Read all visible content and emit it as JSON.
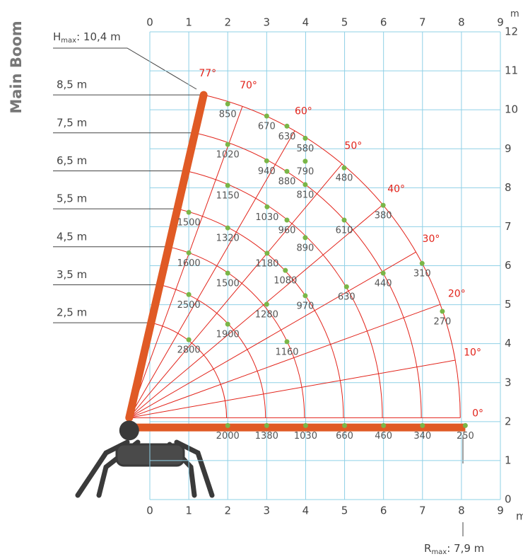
{
  "chart_data": {
    "type": "load-chart",
    "title": "Main Boom",
    "xlim": [
      0,
      9
    ],
    "ylim": [
      0,
      12
    ],
    "xticks": [
      0,
      1,
      2,
      3,
      4,
      5,
      6,
      7,
      8,
      9
    ],
    "yticks": [
      0,
      1,
      2,
      3,
      4,
      5,
      6,
      7,
      8,
      9,
      10,
      11,
      12
    ],
    "x_unit": "m",
    "y_unit": "m",
    "grid": true,
    "grid_color": "#8fd0e6",
    "arc_color": "#e2231a",
    "point_color": "#7ab648",
    "boom_color": "#e05a25",
    "arcs": [
      {
        "value": 2.5,
        "label": "2,5 m"
      },
      {
        "value": 3.5,
        "label": "3,5 m"
      },
      {
        "value": 4.5,
        "label": "4,5 m"
      },
      {
        "value": 5.5,
        "label": "5,5 m"
      },
      {
        "value": 6.5,
        "label": "6,5 m"
      },
      {
        "value": 7.5,
        "label": "7,5 m"
      },
      {
        "value": 8.5,
        "label": "8,5 m"
      }
    ],
    "angles": [
      {
        "value": 0,
        "label": "0°"
      },
      {
        "value": 10,
        "label": "10°"
      },
      {
        "value": 20,
        "label": "20°"
      },
      {
        "value": 30,
        "label": "30°"
      },
      {
        "value": 40,
        "label": "40°"
      },
      {
        "value": 50,
        "label": "50°"
      },
      {
        "value": 60,
        "label": "60°"
      },
      {
        "value": 70,
        "label": "70°"
      },
      {
        "value": 77,
        "label": "77°"
      }
    ],
    "points": {
      "x": [
        2,
        3,
        4,
        5,
        6,
        7,
        8.1,
        2.0,
        3.0,
        3.52,
        3.99,
        2.0,
        3.0,
        3.52,
        3.99,
        3.99,
        4.99,
        2.0,
        5.99,
        3.01,
        3.52,
        4.99,
        3.99,
        1.0,
        2.0,
        1.0,
        3.01,
        3.48,
        6.99,
        5.99,
        2.0,
        5.05,
        3.99,
        1.0,
        7.51,
        3.0,
        2.0,
        3.52,
        1.0
      ],
      "y": [
        1.9,
        1.9,
        1.9,
        1.9,
        1.9,
        1.9,
        1.9,
        10.15,
        9.84,
        9.58,
        9.27,
        9.11,
        8.69,
        8.42,
        8.68,
        8.08,
        8.51,
        8.06,
        7.55,
        7.51,
        7.17,
        7.17,
        6.72,
        7.37,
        6.97,
        6.33,
        6.32,
        5.88,
        6.06,
        5.81,
        5.81,
        5.46,
        5.23,
        5.26,
        4.83,
        5.01,
        4.5,
        4.05,
        4.1
      ],
      "values": [
        2000,
        1380,
        1030,
        660,
        460,
        340,
        250,
        850,
        670,
        630,
        580,
        1020,
        940,
        880,
        790,
        810,
        480,
        1150,
        380,
        1030,
        960,
        610,
        890,
        1500,
        1320,
        1600,
        1180,
        1080,
        310,
        440,
        1500,
        630,
        970,
        2500,
        270,
        1280,
        1900,
        1160,
        2800
      ]
    },
    "h_max": {
      "symbol": "H",
      "subscript": "max",
      "text": ": 10,4 m"
    },
    "r_max": {
      "symbol": "R",
      "subscript": "max",
      "text": ": 7,9 m"
    }
  }
}
